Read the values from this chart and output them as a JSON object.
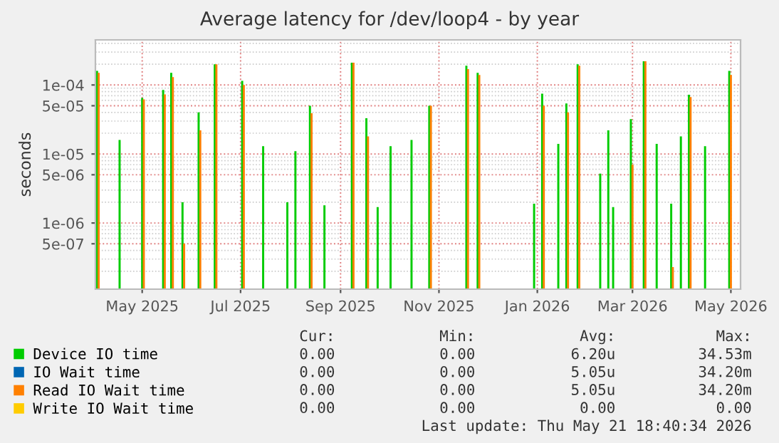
{
  "chart_data": {
    "type": "bar",
    "title": "Average latency for /dev/loop4 - by year",
    "ylabel": "seconds",
    "log": "y",
    "grid": true,
    "legend": "bottom",
    "x": [
      "2025-04-18",
      "2025-05-02",
      "2025-05-16",
      "2025-05-29",
      "2025-06-03",
      "2025-06-10",
      "2025-06-20",
      "2025-06-30",
      "2025-07-17",
      "2025-07-30",
      "2025-08-14",
      "2025-08-19",
      "2025-08-28",
      "2025-09-06",
      "2025-09-23",
      "2025-10-02",
      "2025-10-09",
      "2025-10-17",
      "2025-10-30",
      "2025-11-10",
      "2025-12-03",
      "2025-12-10",
      "2026-01-14",
      "2026-01-19",
      "2026-01-29",
      "2026-02-03",
      "2026-02-10",
      "2026-02-24",
      "2026-03-01",
      "2026-03-04",
      "2026-03-15",
      "2026-03-23",
      "2026-03-31",
      "2026-04-09",
      "2026-04-15",
      "2026-04-20",
      "2026-04-30",
      "2026-05-15"
    ],
    "series": [
      {
        "name": "Device IO time",
        "color": "#00cc00",
        "values": [
          0.00016,
          1.6e-05,
          6.5e-05,
          8.5e-05,
          0.00015,
          2e-06,
          4e-05,
          0.0002,
          0.000115,
          1.3e-05,
          2e-06,
          1.1e-05,
          5e-05,
          1.8e-06,
          0.00021,
          3.3e-05,
          1.7e-06,
          1.3e-05,
          1.6e-05,
          5e-05,
          0.00019,
          0.00015,
          1.9e-06,
          7.5e-05,
          1.4e-05,
          5.4e-05,
          0.0002,
          5.2e-06,
          2.2e-05,
          1.7e-06,
          3.2e-05,
          0.00022,
          1.4e-05,
          1.9e-06,
          1.8e-05,
          7.2e-05,
          1.3e-05,
          0.00016
        ]
      },
      {
        "name": "IO Wait time",
        "color": "#0066b3",
        "values": [
          null,
          null,
          null,
          null,
          null,
          null,
          null,
          null,
          null,
          null,
          null,
          null,
          null,
          null,
          null,
          null,
          null,
          null,
          null,
          null,
          null,
          null,
          null,
          null,
          null,
          null,
          null,
          null,
          null,
          null,
          null,
          null,
          null,
          null,
          null,
          null,
          null,
          null
        ]
      },
      {
        "name": "Read IO Wait time",
        "color": "#ff8000",
        "x": [
          "2025-04-19",
          "2025-05-03",
          "2025-05-17",
          "2025-05-30",
          "2025-06-04",
          "2025-06-11",
          "2025-06-21",
          "2025-07-01",
          "2025-07-18",
          "2025-07-31",
          "2025-08-15",
          "2025-08-20",
          "2025-08-29",
          "2025-09-07",
          "2025-09-24",
          "2025-10-03",
          "2025-10-10",
          "2025-10-18",
          "2025-10-31",
          "2025-11-11",
          "2025-12-04",
          "2025-12-11",
          "2026-01-15",
          "2026-01-20",
          "2026-01-30",
          "2026-02-04",
          "2026-02-11",
          "2026-02-25",
          "2026-03-02",
          "2026-03-05",
          "2026-03-16",
          "2026-03-24",
          "2026-04-01",
          "2026-04-10",
          "2026-04-16",
          "2026-04-21",
          "2026-05-01",
          "2026-05-16"
        ],
        "values": [
          0.00015,
          null,
          6.2e-05,
          7.3e-05,
          0.00013,
          5e-07,
          2.2e-05,
          0.0002,
          0.0001,
          null,
          null,
          null,
          3.9e-05,
          null,
          0.00021,
          1.8e-05,
          null,
          null,
          null,
          5e-05,
          0.00017,
          0.00014,
          null,
          5e-05,
          null,
          4e-05,
          0.00019,
          null,
          null,
          null,
          7e-06,
          0.00022,
          null,
          2.3e-07,
          null,
          6.7e-05,
          null,
          0.00014
        ]
      },
      {
        "name": "Write IO Wait time",
        "color": "#ffcc00",
        "values": [
          null,
          null,
          null,
          null,
          null,
          null,
          null,
          null,
          null,
          null,
          null,
          null,
          null,
          null,
          null,
          null,
          null,
          null,
          null,
          null,
          null,
          null,
          null,
          null,
          null,
          null,
          null,
          null,
          null,
          null,
          null,
          null,
          null,
          null,
          null,
          null,
          null,
          null
        ]
      }
    ],
    "xlim": [
      "2025-04-17",
      "2026-05-22"
    ],
    "xticks": [
      {
        "value": "2025-05-16",
        "label": "May 2025"
      },
      {
        "value": "2025-07-16",
        "label": "Jul 2025"
      },
      {
        "value": "2025-09-16",
        "label": "Sep 2025"
      },
      {
        "value": "2025-11-16",
        "label": "Nov 2025"
      },
      {
        "value": "2026-01-16",
        "label": "Jan 2026"
      },
      {
        "value": "2026-03-16",
        "label": "Mar 2026"
      },
      {
        "value": "2026-05-16",
        "label": "May 2026"
      }
    ],
    "ylim": [
      1.1e-07,
      0.00045
    ],
    "yticks": [
      {
        "value": 5e-07,
        "label": "5e-07"
      },
      {
        "value": 1e-06,
        "label": "1e-06"
      },
      {
        "value": 5e-06,
        "label": "5e-06"
      },
      {
        "value": 1e-05,
        "label": "1e-05"
      },
      {
        "value": 5e-05,
        "label": "5e-05"
      },
      {
        "value": 0.0001,
        "label": "1e-04"
      }
    ],
    "annotations": [
      "Cur:",
      "Min:",
      "Avg:",
      "Max:",
      "0.00",
      "0.00",
      "6.20u",
      "34.53m",
      "0.00",
      "0.00",
      "5.05u",
      "34.20m",
      "0.00",
      "0.00",
      "5.05u",
      "34.20m",
      "0.00",
      "0.00",
      "0.00",
      "0.00",
      "Last update: Thu May 21 18:40:34 2026"
    ]
  }
}
